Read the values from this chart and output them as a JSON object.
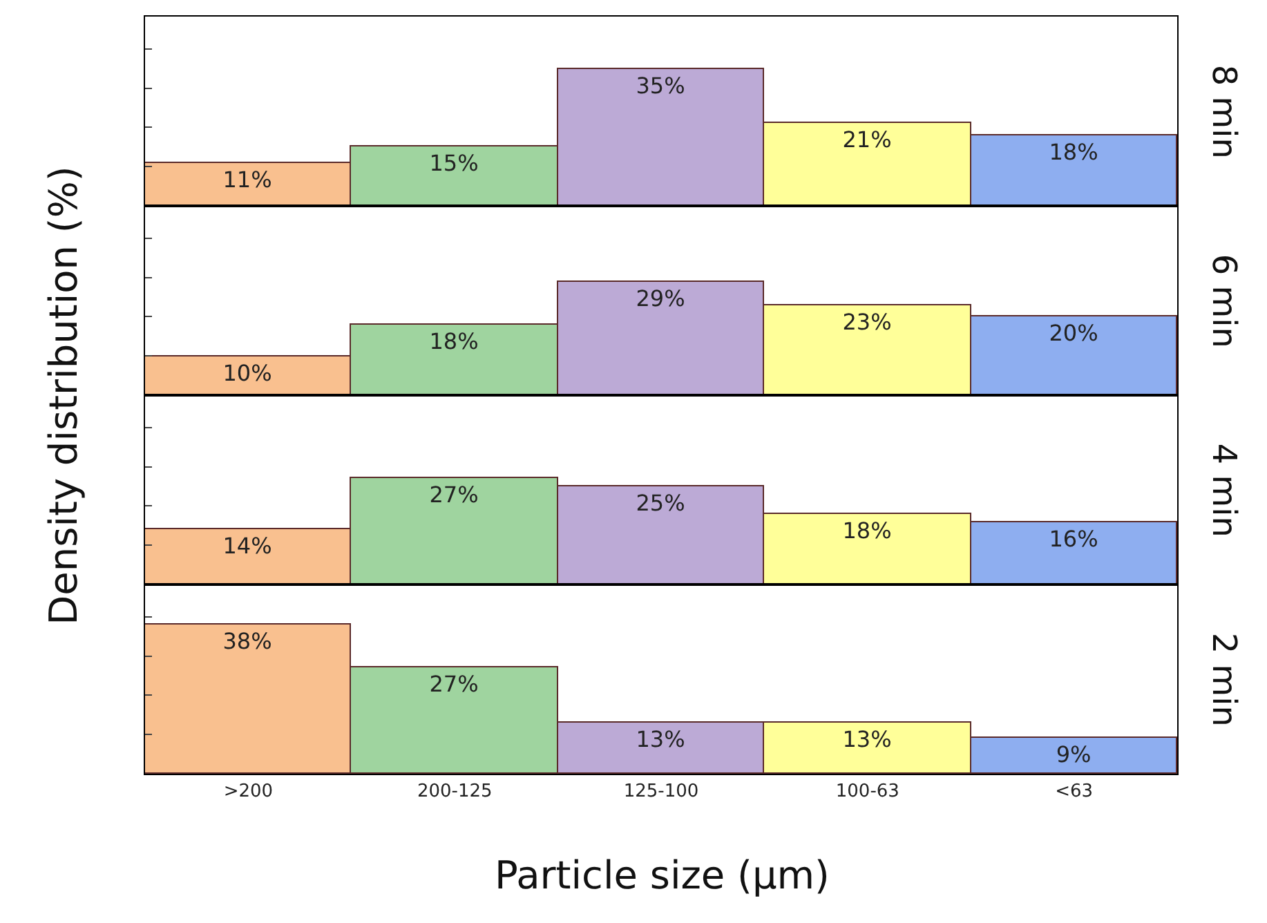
{
  "chart_data": [
    {
      "type": "bar",
      "y2label": "8 min",
      "ylabel": "Density distribution (%)",
      "categories": [
        null,
        null,
        null,
        null,
        null
      ],
      "values": [
        11,
        15,
        35,
        21,
        18
      ],
      "value_labels": [
        "11%",
        "15%",
        "35%",
        "21%",
        "18%"
      ],
      "colors": [
        "#f9c08f",
        "#9fd49f",
        "#bcaad6",
        "#ffff99",
        "#8eaef0"
      ],
      "tick_labels": false
    },
    {
      "type": "bar",
      "y2label": "6 min",
      "categories": [
        null,
        null,
        null,
        null,
        null
      ],
      "values": [
        10,
        18,
        29,
        23,
        20
      ],
      "value_labels": [
        "10%",
        "18%",
        "29%",
        "23%",
        "20%"
      ],
      "colors": [
        "#f9c08f",
        "#9fd49f",
        "#bcaad6",
        "#ffff99",
        "#8eaef0"
      ],
      "tick_labels": false
    },
    {
      "type": "bar",
      "y2label": "4 min",
      "categories": [
        null,
        null,
        null,
        null,
        null
      ],
      "values": [
        14,
        27,
        25,
        18,
        16
      ],
      "value_labels": [
        "14%",
        "27%",
        "25%",
        "18%",
        "16%"
      ],
      "colors": [
        "#f9c08f",
        "#9fd49f",
        "#bcaad6",
        "#ffff99",
        "#8eaef0"
      ],
      "tick_labels": false
    },
    {
      "type": "bar",
      "y2label": "2 min",
      "xlabel": "Particle size (μm)",
      "categories": [
        ">200",
        "200-125",
        "125-100",
        "100-63",
        "<63"
      ],
      "values": [
        38,
        27,
        13,
        13,
        9
      ],
      "value_labels": [
        "38%",
        "27%",
        "13%",
        "13%",
        "9%"
      ],
      "colors": [
        "#f9c08f",
        "#9fd49f",
        "#bcaad6",
        "#ffff99",
        "#8eaef0"
      ],
      "tick_labels": "x"
    }
  ]
}
